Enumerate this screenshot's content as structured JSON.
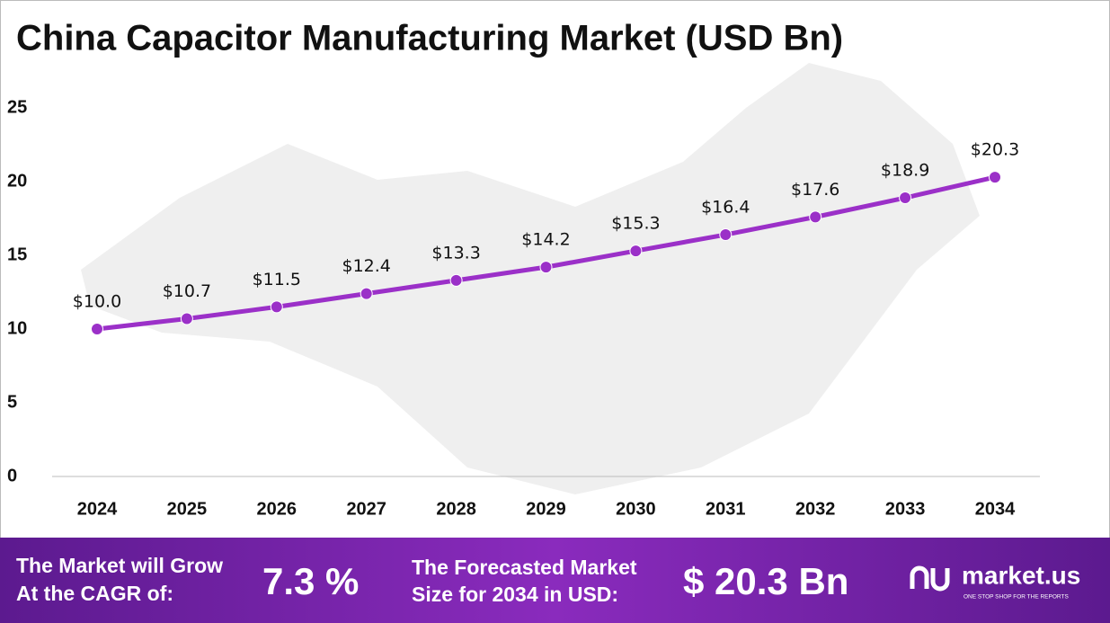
{
  "chart_data": {
    "type": "line",
    "title": "China Capacitor Manufacturing Market (USD Bn)",
    "categories": [
      "2024",
      "2025",
      "2026",
      "2027",
      "2028",
      "2029",
      "2030",
      "2031",
      "2032",
      "2033",
      "2034"
    ],
    "series": [
      {
        "color": "#9b30c8",
        "values": [
          10.0,
          10.7,
          11.5,
          12.4,
          13.3,
          14.2,
          15.3,
          16.4,
          17.6,
          18.9,
          20.3
        ],
        "value_labels": [
          "$10.0",
          "$10.7",
          "$11.5",
          "$12.4",
          "$13.3",
          "$14.2",
          "$15.3",
          "$16.4",
          "$17.6",
          "$18.9",
          "$20.3"
        ]
      }
    ],
    "ylim": [
      0,
      25
    ],
    "yticks": [
      0,
      5,
      10,
      15,
      20,
      25
    ],
    "grid": false
  },
  "footer": {
    "cagr_text": [
      "The Market will Grow",
      "At the CAGR of:"
    ],
    "cagr_value": "7.3 %",
    "forecast_text": [
      "The Forecasted Market",
      "Size for 2034 in USD:"
    ],
    "forecast_value": "$ 20.3 Bn",
    "brand": "market.us",
    "tagline": "ONE STOP SHOP FOR THE REPORTS"
  }
}
